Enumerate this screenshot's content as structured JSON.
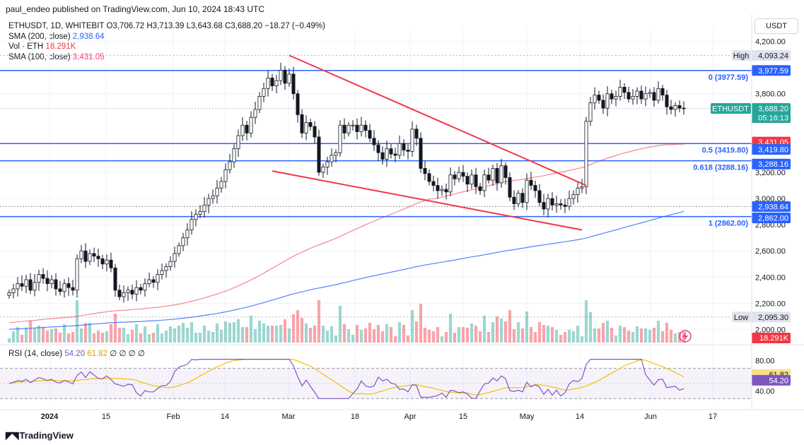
{
  "header": {
    "published": "paul_endeo published on TradingView.com, Jun 10, 2024 18:43 UTC",
    "ticker_line": "ETHUSDT, 1D, WHITEBIT  O3,706.72  H3,713.39  L3,643.68  C3,688.20  −18.27 (−0.49%)",
    "sma200_label": "SMA (200, close)",
    "sma200_value": "2,938.64",
    "vol_label": "Vol · ETH",
    "vol_value": "18.291K",
    "sma100_label": "SMA (100, close)",
    "sma100_value": "3,431.05",
    "currency": "USDT"
  },
  "rsi_legend": {
    "label": "RSI (14, close)",
    "rsi": "54.20",
    "ma": "61.82",
    "extra": "∅ ∅ ∅ ∅"
  },
  "footer": {
    "brand": "TradingView"
  },
  "colors": {
    "up": "#26a69a",
    "down": "#131722",
    "hline": "#2962ff",
    "sma200": "#2962ff",
    "sma100": "#f23645",
    "trend": "#f23645",
    "rsi": "#7e57c2",
    "rsi_ma": "#f2c200"
  },
  "chart_data": {
    "type": "candlestick",
    "symbol": "ETHUSDT",
    "interval": "1D",
    "ylim": [
      1900,
      4300
    ],
    "y_ticks": [
      "4,200.00",
      "3,800.00",
      "3,200.00",
      "3,000.00",
      "2,800.00",
      "2,600.00",
      "2,400.00",
      "2,200.00",
      "2,000.00"
    ],
    "x_ticks": [
      "2024",
      "15",
      "Feb",
      "14",
      "Mar",
      "18",
      "Apr",
      "15",
      "May",
      "14",
      "Jun",
      "17"
    ],
    "closes": [
      2280,
      2310,
      2350,
      2330,
      2380,
      2300,
      2360,
      2420,
      2390,
      2350,
      2380,
      2310,
      2290,
      2350,
      2320,
      2300,
      2540,
      2600,
      2520,
      2580,
      2560,
      2540,
      2500,
      2530,
      2470,
      2300,
      2250,
      2280,
      2300,
      2270,
      2320,
      2300,
      2350,
      2380,
      2360,
      2420,
      2450,
      2480,
      2520,
      2580,
      2640,
      2700,
      2760,
      2840,
      2880,
      2900,
      2950,
      3000,
      3020,
      3080,
      3130,
      3220,
      3280,
      3380,
      3480,
      3560,
      3500,
      3620,
      3680,
      3780,
      3840,
      3920,
      3860,
      3900,
      3980,
      3880,
      3950,
      3800,
      3640,
      3500,
      3580,
      3550,
      3470,
      3200,
      3240,
      3280,
      3330,
      3350,
      3560,
      3500,
      3560,
      3560,
      3510,
      3560,
      3520,
      3460,
      3410,
      3350,
      3300,
      3380,
      3340,
      3330,
      3420,
      3370,
      3360,
      3530,
      3460,
      3230,
      3190,
      3130,
      3100,
      3060,
      3070,
      3050,
      3180,
      3150,
      3200,
      3170,
      3110,
      3180,
      3090,
      3060,
      3180,
      3140,
      3230,
      3120,
      3250,
      3160,
      3010,
      2960,
      3040,
      2970,
      3140,
      3100,
      3060,
      2970,
      2920,
      3000,
      2950,
      2960,
      2950,
      2940,
      3000,
      3030,
      3080,
      3090,
      3590,
      3730,
      3790,
      3750,
      3690,
      3800,
      3760,
      3780,
      3850,
      3810,
      3760,
      3780,
      3820,
      3760,
      3800,
      3810,
      3750,
      3840,
      3790,
      3700,
      3680,
      3710,
      3690,
      3688
    ],
    "y_labels": [
      {
        "text": "4,093.24",
        "kind": "High",
        "value": 4093.24
      },
      {
        "text": "3,977.59",
        "kind": "fib",
        "value": 3977.59
      },
      {
        "text": "3,688.20",
        "kind": "last",
        "value": 3688.2,
        "name": "ETHUSDT",
        "countdown": "05:16:13"
      },
      {
        "text": "3,431.05",
        "kind": "sma100",
        "value": 3431.05
      },
      {
        "text": "3,419.80",
        "kind": "fib",
        "value": 3419.8
      },
      {
        "text": "3,288.16",
        "kind": "fib",
        "value": 3288.16
      },
      {
        "text": "2,938.64",
        "kind": "sma200",
        "value": 2938.64
      },
      {
        "text": "2,862.00",
        "kind": "fib",
        "value": 2862.0
      },
      {
        "text": "2,095.30",
        "kind": "Low",
        "value": 2095.3
      },
      {
        "text": "18.291K",
        "kind": "volume"
      }
    ],
    "fib_levels": [
      {
        "label": "0 (3977.59)",
        "value": 3977.59
      },
      {
        "label": "0.5 (3419.80)",
        "value": 3419.8
      },
      {
        "label": "0.618 (3288.16)",
        "value": 3288.16
      },
      {
        "label": "1 (2862.00)",
        "value": 2862.0
      }
    ],
    "rsi": {
      "ticks": [
        "80.00",
        "40.00"
      ],
      "ylim": [
        20,
        90
      ],
      "upper": 70,
      "lower": 30,
      "last": 54.2,
      "ma_last": 61.82
    },
    "annotations": [
      "falling wedge: upper trendline from ~4,090 (Mar) to ~3,100 (May)",
      "lower trendline from ~3,210 (Feb) to ~2,760 (May)"
    ]
  }
}
